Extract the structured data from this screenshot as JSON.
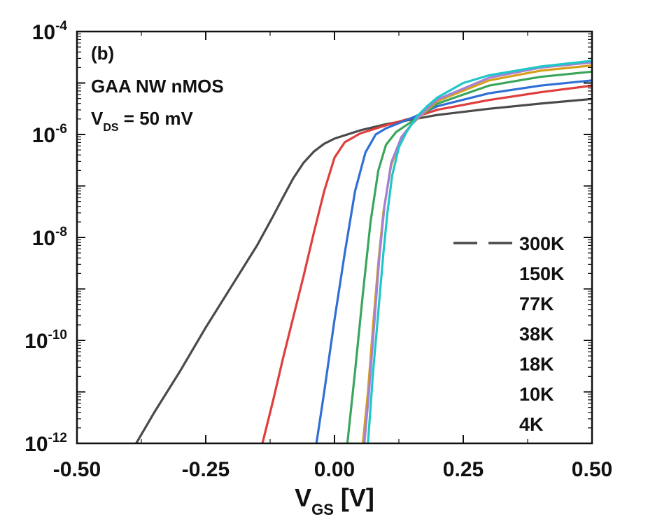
{
  "chart_data": {
    "type": "line",
    "panel_label": "(b)",
    "annotations": [
      "GAA NW nMOS"
    ],
    "vds_label": {
      "main": "V",
      "sub": "DS",
      "rest": " = 50 mV"
    },
    "xlabel": {
      "main": "V",
      "sub": "GS",
      "rest": " [V]"
    },
    "ylabel": "",
    "x_range": [
      -0.5,
      0.5
    ],
    "x_scale": "linear",
    "y_range_log10": [
      -12,
      -4
    ],
    "y_scale": "log",
    "x_ticks": [
      -0.5,
      -0.25,
      0.0,
      0.25,
      0.5
    ],
    "x_tick_labels": [
      "-0.50",
      "-0.25",
      "0.00",
      "0.25",
      "0.50"
    ],
    "y_ticks_exp": [
      -12,
      -10,
      -8,
      -6,
      -4
    ],
    "y_tick_base": "10",
    "y_tick_exp_labels": [
      "-12",
      "-10",
      "-8",
      "-6",
      "-4"
    ],
    "grid": false,
    "legend_position": "right",
    "series": [
      {
        "name": "300K",
        "color": "#4a4a4a",
        "points": [
          [
            -0.385,
            -12
          ],
          [
            -0.35,
            -11.4
          ],
          [
            -0.3,
            -10.6
          ],
          [
            -0.25,
            -9.75
          ],
          [
            -0.2,
            -8.95
          ],
          [
            -0.15,
            -8.15
          ],
          [
            -0.12,
            -7.6
          ],
          [
            -0.1,
            -7.22
          ],
          [
            -0.08,
            -6.85
          ],
          [
            -0.06,
            -6.55
          ],
          [
            -0.04,
            -6.33
          ],
          [
            -0.02,
            -6.18
          ],
          [
            0.0,
            -6.08
          ],
          [
            0.05,
            -5.92
          ],
          [
            0.1,
            -5.8
          ],
          [
            0.2,
            -5.62
          ],
          [
            0.3,
            -5.5
          ],
          [
            0.4,
            -5.4
          ],
          [
            0.5,
            -5.31
          ]
        ]
      },
      {
        "name": "150K",
        "color": "#e03d3d",
        "points": [
          [
            -0.14,
            -12
          ],
          [
            -0.12,
            -11.2
          ],
          [
            -0.1,
            -10.35
          ],
          [
            -0.08,
            -9.55
          ],
          [
            -0.06,
            -8.75
          ],
          [
            -0.04,
            -7.9
          ],
          [
            -0.02,
            -7.1
          ],
          [
            0.0,
            -6.45
          ],
          [
            0.02,
            -6.15
          ],
          [
            0.05,
            -5.98
          ],
          [
            0.1,
            -5.82
          ],
          [
            0.15,
            -5.68
          ],
          [
            0.2,
            -5.52
          ],
          [
            0.3,
            -5.33
          ],
          [
            0.4,
            -5.18
          ],
          [
            0.5,
            -5.05
          ]
        ]
      },
      {
        "name": "77K",
        "color": "#2f6fd6",
        "points": [
          [
            -0.035,
            -12
          ],
          [
            -0.02,
            -11.0
          ],
          [
            0.0,
            -9.6
          ],
          [
            0.02,
            -8.3
          ],
          [
            0.04,
            -7.1
          ],
          [
            0.06,
            -6.35
          ],
          [
            0.08,
            -6.0
          ],
          [
            0.1,
            -5.88
          ],
          [
            0.15,
            -5.68
          ],
          [
            0.2,
            -5.45
          ],
          [
            0.3,
            -5.2
          ],
          [
            0.4,
            -5.05
          ],
          [
            0.5,
            -4.95
          ]
        ]
      },
      {
        "name": "38K",
        "color": "#3aa65c",
        "points": [
          [
            0.025,
            -12
          ],
          [
            0.04,
            -10.6
          ],
          [
            0.055,
            -9.1
          ],
          [
            0.07,
            -7.7
          ],
          [
            0.085,
            -6.7
          ],
          [
            0.1,
            -6.2
          ],
          [
            0.12,
            -5.95
          ],
          [
            0.15,
            -5.75
          ],
          [
            0.2,
            -5.4
          ],
          [
            0.3,
            -5.05
          ],
          [
            0.4,
            -4.88
          ],
          [
            0.5,
            -4.78
          ]
        ]
      },
      {
        "name": "18K",
        "color": "#d4a017",
        "points": [
          [
            0.055,
            -12
          ],
          [
            0.065,
            -11.0
          ],
          [
            0.075,
            -9.7
          ],
          [
            0.085,
            -8.5
          ],
          [
            0.095,
            -7.5
          ],
          [
            0.11,
            -6.6
          ],
          [
            0.13,
            -6.05
          ],
          [
            0.15,
            -5.8
          ],
          [
            0.18,
            -5.52
          ],
          [
            0.2,
            -5.35
          ],
          [
            0.3,
            -4.95
          ],
          [
            0.4,
            -4.76
          ],
          [
            0.5,
            -4.66
          ]
        ]
      },
      {
        "name": "10K",
        "color": "#a77fd6",
        "points": [
          [
            0.058,
            -12
          ],
          [
            0.067,
            -11.0
          ],
          [
            0.077,
            -9.7
          ],
          [
            0.087,
            -8.4
          ],
          [
            0.097,
            -7.4
          ],
          [
            0.11,
            -6.55
          ],
          [
            0.13,
            -6.05
          ],
          [
            0.15,
            -5.8
          ],
          [
            0.18,
            -5.5
          ],
          [
            0.2,
            -5.32
          ],
          [
            0.3,
            -4.9
          ],
          [
            0.4,
            -4.7
          ],
          [
            0.5,
            -4.6
          ]
        ]
      },
      {
        "name": "4K",
        "color": "#1fc7c7",
        "points": [
          [
            0.065,
            -12
          ],
          [
            0.07,
            -11.3
          ],
          [
            0.075,
            -10.6
          ],
          [
            0.082,
            -9.8
          ],
          [
            0.088,
            -9.1
          ],
          [
            0.095,
            -8.3
          ],
          [
            0.103,
            -7.5
          ],
          [
            0.112,
            -6.8
          ],
          [
            0.125,
            -6.25
          ],
          [
            0.14,
            -5.95
          ],
          [
            0.16,
            -5.65
          ],
          [
            0.18,
            -5.45
          ],
          [
            0.2,
            -5.28
          ],
          [
            0.25,
            -5.0
          ],
          [
            0.3,
            -4.85
          ],
          [
            0.4,
            -4.68
          ],
          [
            0.5,
            -4.57
          ]
        ]
      }
    ]
  }
}
